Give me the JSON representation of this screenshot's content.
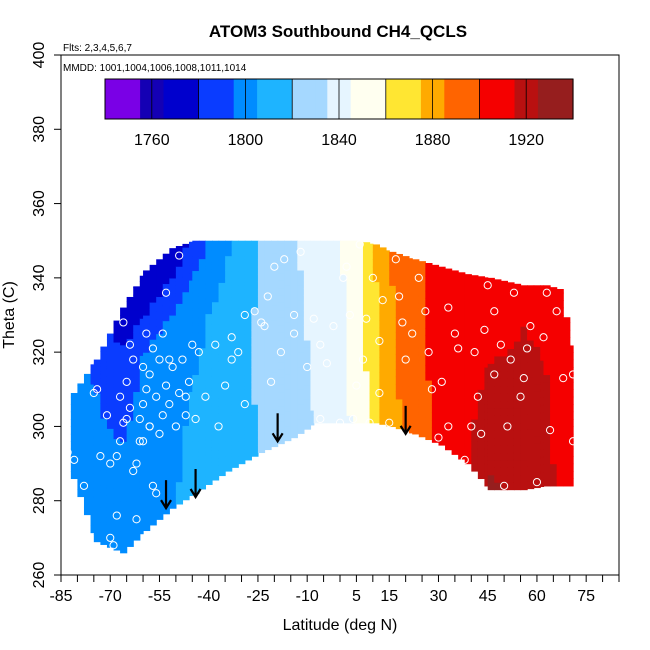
{
  "chart_data": {
    "type": "heatmap",
    "title": "ATOM3 Southbound CH4_QCLS",
    "annotations": [
      "Flts: 2,3,4,5,6,7",
      "MMDD: 1001,1004,1006,1008,1011,1014"
    ],
    "xlabel": "Latitude (deg N)",
    "ylabel": "Theta (C)",
    "xlim": [
      -85,
      85
    ],
    "ylim": [
      260,
      400
    ],
    "x_ticks": [
      -85,
      -80,
      -75,
      -70,
      -65,
      -60,
      -55,
      -50,
      -45,
      -40,
      -35,
      -30,
      -25,
      -20,
      -15,
      -10,
      -5,
      0,
      5,
      10,
      15,
      20,
      25,
      30,
      35,
      40,
      45,
      50,
      55,
      60,
      65,
      70,
      75,
      80,
      85
    ],
    "x_tick_labels": [
      "-85",
      "-70",
      "-55",
      "-40",
      "-25",
      "-10",
      "5",
      "15",
      "30",
      "45",
      "60",
      "75"
    ],
    "x_tick_label_values": [
      -85,
      -70,
      -55,
      -40,
      -25,
      -10,
      5,
      15,
      30,
      45,
      60,
      75
    ],
    "y_tick_labels": [
      "260",
      "280",
      "300",
      "320",
      "340",
      "360",
      "380",
      "400"
    ],
    "y_tick_label_values": [
      260,
      280,
      300,
      320,
      340,
      360,
      380,
      400
    ],
    "colorbar": {
      "min": 1740,
      "max": 1940,
      "step": 20,
      "labels": [
        "1760",
        "1800",
        "1840",
        "1880",
        "1920"
      ],
      "label_values": [
        1760,
        1800,
        1840,
        1880,
        1920
      ],
      "colors": [
        "#7a00e6",
        "#1400b4",
        "#0000cd",
        "#0a3cff",
        "#008cff",
        "#1eb4ff",
        "#a5d8ff",
        "#e6f5ff",
        "#fffff0",
        "#ffe632",
        "#ffaa00",
        "#ff6400",
        "#f50000",
        "#b91010",
        "#961e1e"
      ]
    },
    "field_columns": [
      {
        "lat": -82,
        "bottom": 286,
        "top": 309,
        "ch4": [
          1795,
          1797
        ]
      },
      {
        "lat": -75,
        "bottom": 269,
        "top": 318,
        "ch4": [
          1797,
          1795,
          1792
        ]
      },
      {
        "lat": -67,
        "bottom": 266,
        "top": 332,
        "ch4": [
          1798,
          1795,
          1790,
          1770
        ]
      },
      {
        "lat": -60,
        "bottom": 272,
        "top": 342,
        "ch4": [
          1800,
          1797,
          1794,
          1765
        ]
      },
      {
        "lat": -52,
        "bottom": 278,
        "top": 348,
        "ch4": [
          1806,
          1804,
          1799,
          1768
        ]
      },
      {
        "lat": -45,
        "bottom": 282,
        "top": 350,
        "ch4": [
          1810,
          1808,
          1804,
          1785
        ]
      },
      {
        "lat": -35,
        "bottom": 288,
        "top": 350,
        "ch4": [
          1815,
          1814,
          1812,
          1805
        ]
      },
      {
        "lat": -25,
        "bottom": 293,
        "top": 350,
        "ch4": [
          1820,
          1822,
          1822,
          1822
        ]
      },
      {
        "lat": -15,
        "bottom": 297,
        "top": 350,
        "ch4": [
          1826,
          1828,
          1830,
          1832
        ]
      },
      {
        "lat": -8,
        "bottom": 301,
        "top": 350,
        "ch4": [
          1834,
          1836,
          1838,
          1840
        ]
      },
      {
        "lat": 0,
        "bottom": 301,
        "top": 350,
        "ch4": [
          1843,
          1845,
          1846,
          1848
        ]
      },
      {
        "lat": 5,
        "bottom": 301,
        "top": 350,
        "ch4": [
          1852,
          1854,
          1856,
          1858
        ]
      },
      {
        "lat": 10,
        "bottom": 301,
        "top": 349,
        "ch4": [
          1868,
          1870,
          1872,
          1876
        ]
      },
      {
        "lat": 15,
        "bottom": 300,
        "top": 347,
        "ch4": [
          1882,
          1884,
          1886,
          1888
        ]
      },
      {
        "lat": 22,
        "bottom": 298,
        "top": 345,
        "ch4": [
          1896,
          1896,
          1898,
          1898
        ]
      },
      {
        "lat": 30,
        "bottom": 295,
        "top": 343,
        "ch4": [
          1902,
          1904,
          1905,
          1906
        ]
      },
      {
        "lat": 38,
        "bottom": 290,
        "top": 341,
        "ch4": [
          1912,
          1910,
          1908,
          1907
        ]
      },
      {
        "lat": 45,
        "bottom": 283,
        "top": 340,
        "ch4": [
          1928,
          1918,
          1912,
          1910
        ]
      },
      {
        "lat": 55,
        "bottom": 283,
        "top": 338,
        "ch4": [
          1924,
          1918,
          1914,
          1912
        ]
      },
      {
        "lat": 62,
        "bottom": 284,
        "top": 338,
        "ch4": [
          1915,
          1914,
          1913,
          1911
        ]
      },
      {
        "lat": 66,
        "bottom": 284,
        "top": 337,
        "ch4": [
          1912,
          1912,
          1911,
          1910
        ]
      },
      {
        "lat": 71,
        "bottom": 284,
        "top": 318,
        "ch4": [
          1908,
          1908
        ]
      }
    ],
    "sample_points": [
      [
        -83,
        293
      ],
      [
        -81,
        291
      ],
      [
        -78,
        284
      ],
      [
        -75,
        309
      ],
      [
        -73,
        292
      ],
      [
        -71,
        303
      ],
      [
        -70,
        270
      ],
      [
        -69,
        268
      ],
      [
        -68,
        276
      ],
      [
        -68,
        292
      ],
      [
        -67,
        296
      ],
      [
        -67,
        308
      ],
      [
        -66,
        301
      ],
      [
        -66,
        328
      ],
      [
        -65,
        302
      ],
      [
        -65,
        312
      ],
      [
        -64,
        305
      ],
      [
        -64,
        322
      ],
      [
        -63,
        288
      ],
      [
        -63,
        318
      ],
      [
        -62,
        290
      ],
      [
        -62,
        275
      ],
      [
        -61,
        302
      ],
      [
        -60,
        296
      ],
      [
        -60,
        306
      ],
      [
        -59,
        310
      ],
      [
        -59,
        325
      ],
      [
        -58,
        300
      ],
      [
        -58,
        314
      ],
      [
        -57,
        284
      ],
      [
        -57,
        321
      ],
      [
        -56,
        308
      ],
      [
        -56,
        282
      ],
      [
        -55,
        298
      ],
      [
        -55,
        318
      ],
      [
        -54,
        303
      ],
      [
        -54,
        325
      ],
      [
        -53,
        311
      ],
      [
        -53,
        336
      ],
      [
        -52,
        306
      ],
      [
        -51,
        316
      ],
      [
        -50,
        300
      ],
      [
        -49,
        309
      ],
      [
        -49,
        346
      ],
      [
        -48,
        318
      ],
      [
        -47,
        308
      ],
      [
        -46,
        312
      ],
      [
        -45,
        322
      ],
      [
        -44,
        302
      ],
      [
        -43,
        320
      ],
      [
        -41,
        308
      ],
      [
        -38,
        322
      ],
      [
        -35,
        311
      ],
      [
        -33,
        324
      ],
      [
        -31,
        320
      ],
      [
        -29,
        330
      ],
      [
        -26,
        331
      ],
      [
        -24,
        328
      ],
      [
        -22,
        335
      ],
      [
        -21,
        312
      ],
      [
        -20,
        343
      ],
      [
        -18,
        320
      ],
      [
        -17,
        345
      ],
      [
        -14,
        330
      ],
      [
        -12,
        347
      ],
      [
        -10,
        316
      ],
      [
        -8,
        329
      ],
      [
        -6,
        302
      ],
      [
        -4,
        317
      ],
      [
        -2,
        327
      ],
      [
        0,
        301
      ],
      [
        2,
        343
      ],
      [
        3,
        330
      ],
      [
        4,
        302
      ],
      [
        6,
        349
      ],
      [
        7,
        318
      ],
      [
        8,
        329
      ],
      [
        9,
        301
      ],
      [
        10,
        340
      ],
      [
        12,
        323
      ],
      [
        13,
        334
      ],
      [
        15,
        301
      ],
      [
        17,
        345
      ],
      [
        18,
        335
      ],
      [
        20,
        318
      ],
      [
        22,
        325
      ],
      [
        24,
        340
      ],
      [
        26,
        331
      ],
      [
        28,
        310
      ],
      [
        30,
        297
      ],
      [
        31,
        312
      ],
      [
        33,
        332
      ],
      [
        35,
        325
      ],
      [
        36,
        321
      ],
      [
        38,
        291
      ],
      [
        40,
        300
      ],
      [
        41,
        320
      ],
      [
        42,
        308
      ],
      [
        44,
        326
      ],
      [
        45,
        338
      ],
      [
        47,
        331
      ],
      [
        49,
        322
      ],
      [
        50,
        284
      ],
      [
        52,
        318
      ],
      [
        53,
        336
      ],
      [
        55,
        308
      ],
      [
        56,
        313
      ],
      [
        58,
        327
      ],
      [
        60,
        285
      ],
      [
        62,
        324
      ],
      [
        63,
        336
      ],
      [
        66,
        331
      ],
      [
        68,
        313
      ],
      [
        71,
        296
      ],
      [
        71,
        314
      ],
      [
        -74,
        310
      ],
      [
        -70,
        290
      ],
      [
        -61,
        296
      ],
      [
        -60,
        316
      ],
      [
        -58,
        300
      ],
      [
        -52,
        318
      ],
      [
        -47,
        303
      ],
      [
        -37,
        300
      ],
      [
        -33,
        318
      ],
      [
        -29,
        306
      ],
      [
        -23,
        327
      ],
      [
        -14,
        325
      ],
      [
        -6,
        322
      ],
      [
        1,
        340
      ],
      [
        5,
        311
      ],
      [
        12,
        309
      ],
      [
        19,
        328
      ],
      [
        27,
        320
      ],
      [
        33,
        300
      ],
      [
        43,
        298
      ],
      [
        47,
        314
      ],
      [
        51,
        300
      ],
      [
        57,
        321
      ],
      [
        64,
        299
      ]
    ],
    "arrows": [
      {
        "lat": -53,
        "theta": 278
      },
      {
        "lat": -44,
        "theta": 281
      },
      {
        "lat": -19,
        "theta": 296
      },
      {
        "lat": 20,
        "theta": 298
      }
    ]
  }
}
